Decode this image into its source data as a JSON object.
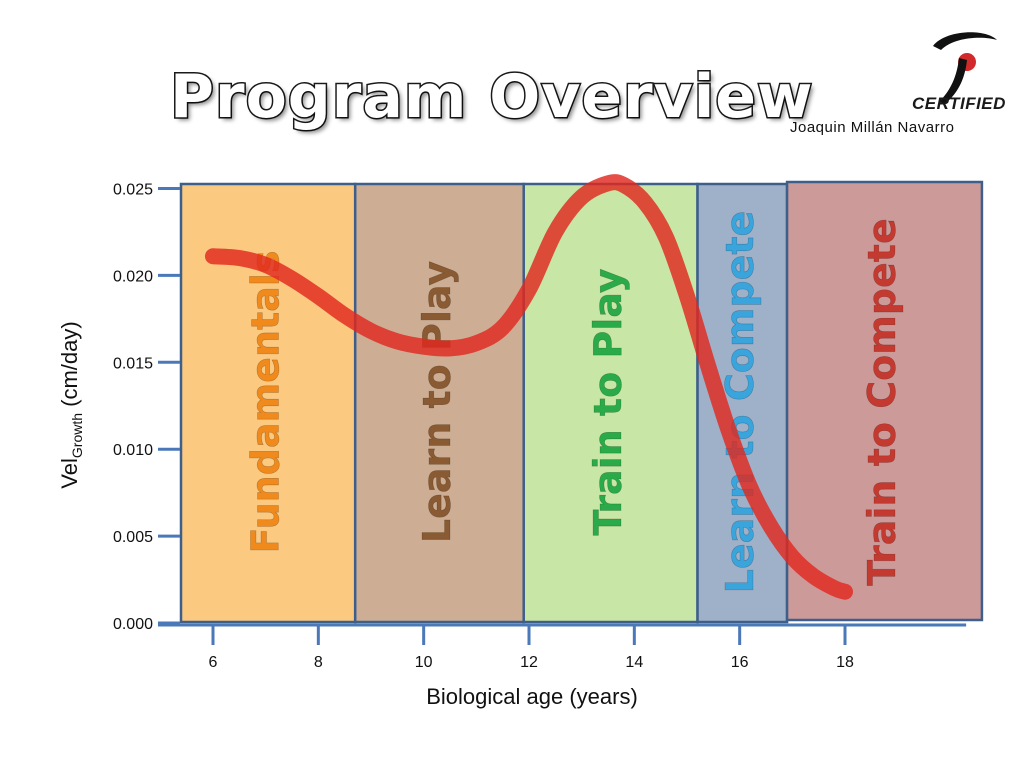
{
  "header": {
    "title": "Program Overview",
    "badge_text": "CERTIFIED",
    "author": "Joaquin  Millán  Navarro"
  },
  "colors": {
    "curve": "#e0281e",
    "axis": "#4a78b8",
    "stage_border": "#3d5f8a"
  },
  "chart_data": {
    "type": "line",
    "xlabel": "Biological age (years)",
    "ylabel_main": "Vel",
    "ylabel_sub": "Growth",
    "ylabel_unit": " (cm/day)",
    "xlim": [
      5.3,
      20.3
    ],
    "ylim": [
      0,
      0.0252
    ],
    "x_ticks": [
      6,
      8,
      10,
      12,
      14,
      16,
      18
    ],
    "y_ticks": [
      "0.000",
      "0.005",
      "0.010",
      "0.015",
      "0.020",
      "0.025"
    ],
    "series": [
      {
        "x": [
          6.0,
          6.5,
          7.0,
          7.5,
          8.0,
          8.5,
          9.0,
          9.5,
          10.0,
          10.5,
          11.0,
          11.5,
          12.0,
          12.5,
          13.0,
          13.5,
          13.8,
          14.2,
          14.6,
          15.0,
          15.4,
          15.8,
          16.2,
          16.6,
          17.0,
          17.4,
          17.8,
          18.0
        ],
        "y": [
          0.0211,
          0.021,
          0.0206,
          0.0198,
          0.0188,
          0.0177,
          0.0168,
          0.0162,
          0.0159,
          0.0158,
          0.0161,
          0.017,
          0.0192,
          0.0225,
          0.0245,
          0.0253,
          0.0252,
          0.0242,
          0.0222,
          0.0188,
          0.0148,
          0.011,
          0.0078,
          0.0055,
          0.0038,
          0.0027,
          0.002,
          0.0018
        ]
      }
    ],
    "stages": [
      {
        "label": "Fundamentals",
        "from": 5.3,
        "to": 8.7,
        "fill": "#fcc981",
        "text": "#f18a1c"
      },
      {
        "label": "Learn to Play",
        "from": 8.7,
        "to": 11.9,
        "fill": "#cdae94",
        "text": "#8a5a32"
      },
      {
        "label": "Train to Play",
        "from": 11.9,
        "to": 15.2,
        "fill": "#c8e6a6",
        "text": "#2aaa48"
      },
      {
        "label": "Learn to Compete",
        "from": 15.2,
        "to": 16.9,
        "fill": "#9fb0c9",
        "text": "#3aa4dc"
      },
      {
        "label": "Train to Compete",
        "from": 16.9,
        "to": 20.6,
        "fill": "#cd9a9a",
        "text": "#c53a30"
      }
    ]
  }
}
